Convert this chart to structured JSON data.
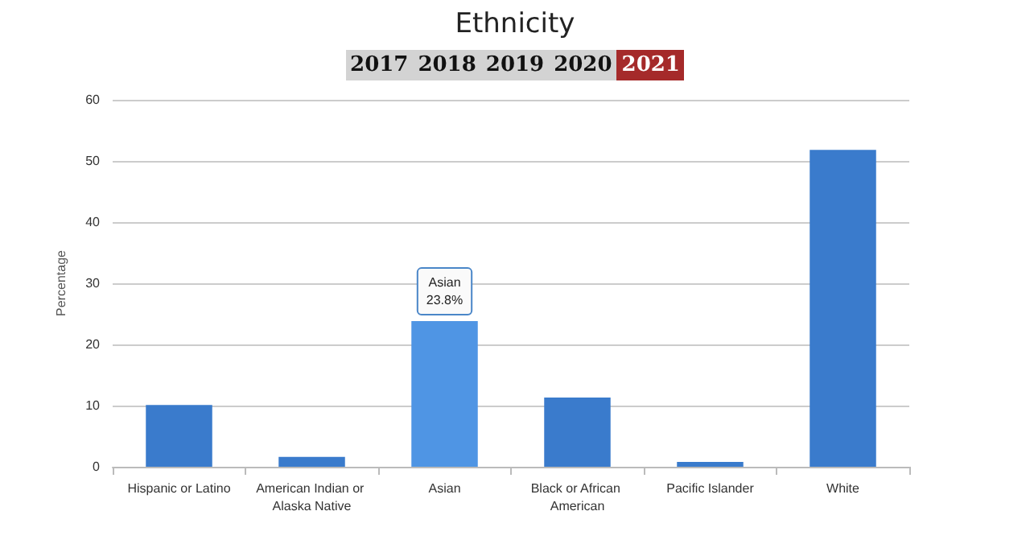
{
  "chart_data": {
    "type": "bar",
    "title": "Ethnicity",
    "ylabel": "Percentage",
    "categories": [
      "Hispanic or Latino",
      "American Indian or Alaska Native",
      "Asian",
      "Black or African American",
      "Pacific Islander",
      "White"
    ],
    "values": [
      10.1,
      1.6,
      23.8,
      11.3,
      0.8,
      51.8
    ],
    "colors": [
      "#3a7bcc",
      "#3a7bcc",
      "#4f95e4",
      "#3a7bcc",
      "#3a7bcc",
      "#3a7bcc"
    ],
    "ylim": [
      0,
      60
    ],
    "yticks": [
      0,
      10,
      20,
      30,
      40,
      50,
      60
    ],
    "grid": "y",
    "annotations": [
      "2017",
      "2018",
      "2019",
      "2020",
      "2021",
      {
        "text": "Asian\n23.8%",
        "x": "Asian",
        "y": 23.8
      }
    ]
  }
}
